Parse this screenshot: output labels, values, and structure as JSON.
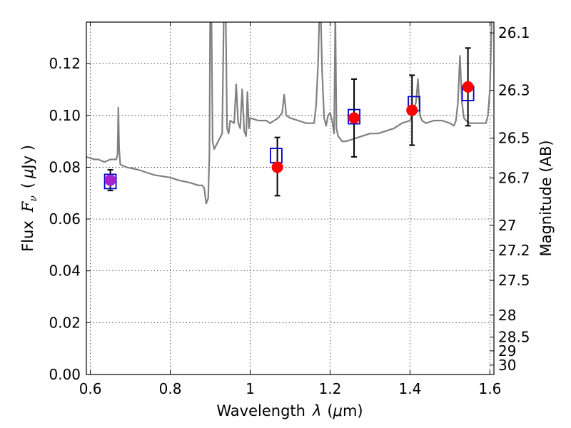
{
  "chart_data": {
    "type": "scatter",
    "x_axis": {
      "label_prefix": "Wavelength",
      "label_symbol": "λ",
      "label_unit_open": "(",
      "label_unit_mu": "μ",
      "label_unit_rest": "m)",
      "range": [
        0.59,
        1.61
      ],
      "ticks": [
        0.6,
        0.8,
        1.0,
        1.2,
        1.4,
        1.6
      ],
      "tick_labels": [
        "0.6",
        "0.8",
        "1",
        "1.2",
        "1.4",
        "1.6"
      ]
    },
    "y_axis": {
      "label_prefix": "Flux",
      "label_symbol": "F",
      "label_sub": "ν",
      "label_unit_open": "(",
      "label_unit_mu": "μ",
      "label_unit_rest": "Jy )",
      "range": [
        0.0,
        0.136
      ],
      "ticks": [
        0.0,
        0.02,
        0.04,
        0.06,
        0.08,
        0.1,
        0.12
      ],
      "tick_labels": [
        "0.00",
        "0.02",
        "0.04",
        "0.06",
        "0.08",
        "0.10",
        "0.12"
      ]
    },
    "y2_axis": {
      "label": "Magnitude (AB)",
      "ticks": [
        26.1,
        26.3,
        26.5,
        26.7,
        27,
        27.2,
        27.5,
        28,
        28.5,
        29,
        30
      ],
      "tick_labels": [
        "26.1",
        "26.3",
        "26.5",
        "26.7",
        "27",
        "27.2",
        "27.5",
        "28",
        "28.5",
        "29",
        "30"
      ]
    },
    "grid": true,
    "series": [
      {
        "kind": "spectrum",
        "color": "#808080",
        "x": [
          0.59,
          0.61,
          0.62,
          0.635,
          0.65,
          0.665,
          0.668,
          0.67,
          0.672,
          0.675,
          0.69,
          0.72,
          0.76,
          0.8,
          0.82,
          0.85,
          0.87,
          0.88,
          0.885,
          0.89,
          0.895,
          0.898,
          0.9,
          0.903,
          0.906,
          0.91,
          0.92,
          0.93,
          0.935,
          0.938,
          0.942,
          0.946,
          0.95,
          0.96,
          0.965,
          0.97,
          0.975,
          0.98,
          0.985,
          0.99,
          0.993,
          0.997,
          1.0,
          1.02,
          1.04,
          1.05,
          1.06,
          1.07,
          1.08,
          1.085,
          1.088,
          1.09,
          1.1,
          1.12,
          1.14,
          1.15,
          1.16,
          1.165,
          1.17,
          1.175,
          1.18,
          1.185,
          1.19,
          1.195,
          1.2,
          1.205,
          1.21,
          1.213,
          1.216,
          1.22,
          1.225,
          1.23,
          1.24,
          1.26,
          1.28,
          1.3,
          1.32,
          1.34,
          1.36,
          1.38,
          1.4,
          1.405,
          1.41,
          1.415,
          1.42,
          1.425,
          1.43,
          1.44,
          1.46,
          1.48,
          1.5,
          1.51,
          1.515,
          1.52,
          1.525,
          1.53,
          1.535,
          1.54,
          1.55,
          1.56,
          1.565,
          1.57,
          1.58,
          1.59,
          1.595,
          1.6,
          1.605,
          1.61
        ],
        "y": [
          0.084,
          0.083,
          0.083,
          0.082,
          0.083,
          0.083,
          0.085,
          0.103,
          0.087,
          0.081,
          0.08,
          0.079,
          0.077,
          0.076,
          0.075,
          0.074,
          0.073,
          0.073,
          0.072,
          0.066,
          0.068,
          0.085,
          0.14,
          0.14,
          0.09,
          0.087,
          0.09,
          0.093,
          0.15,
          0.15,
          0.095,
          0.093,
          0.098,
          0.097,
          0.112,
          0.097,
          0.095,
          0.11,
          0.094,
          0.092,
          0.109,
          0.095,
          0.099,
          0.098,
          0.098,
          0.097,
          0.098,
          0.099,
          0.101,
          0.108,
          0.104,
          0.1,
          0.099,
          0.098,
          0.097,
          0.097,
          0.097,
          0.104,
          0.12,
          0.15,
          0.117,
          0.099,
          0.096,
          0.1,
          0.101,
          0.098,
          0.093,
          0.14,
          0.095,
          0.092,
          0.091,
          0.09,
          0.09,
          0.091,
          0.092,
          0.093,
          0.093,
          0.094,
          0.095,
          0.097,
          0.098,
          0.1,
          0.103,
          0.105,
          0.114,
          0.1,
          0.098,
          0.097,
          0.098,
          0.098,
          0.097,
          0.096,
          0.098,
          0.105,
          0.123,
          0.105,
          0.099,
          0.098,
          0.097,
          0.097,
          0.097,
          0.097,
          0.097,
          0.097,
          0.1,
          0.11,
          0.14,
          0.15
        ]
      },
      {
        "kind": "model_photometry",
        "marker": "open-square",
        "color": "#0000cc",
        "x": [
          0.65,
          1.065,
          1.26,
          1.41,
          1.545
        ],
        "y": [
          0.0745,
          0.0845,
          0.0995,
          0.1045,
          0.1085
        ]
      },
      {
        "kind": "observed_photometry",
        "marker": "filled-circle",
        "color": "#ff0000",
        "colors": [
          "#aa22cc",
          "#ff0000",
          "#ff0000",
          "#ff0000",
          "#ff0000"
        ],
        "x": [
          0.65,
          1.068,
          1.26,
          1.405,
          1.545
        ],
        "y": [
          0.075,
          0.08,
          0.099,
          0.102,
          0.111
        ],
        "yerr_low": [
          0.004,
          0.011,
          0.015,
          0.0135,
          0.015
        ],
        "yerr_high": [
          0.004,
          0.0115,
          0.015,
          0.0135,
          0.015
        ]
      }
    ]
  }
}
